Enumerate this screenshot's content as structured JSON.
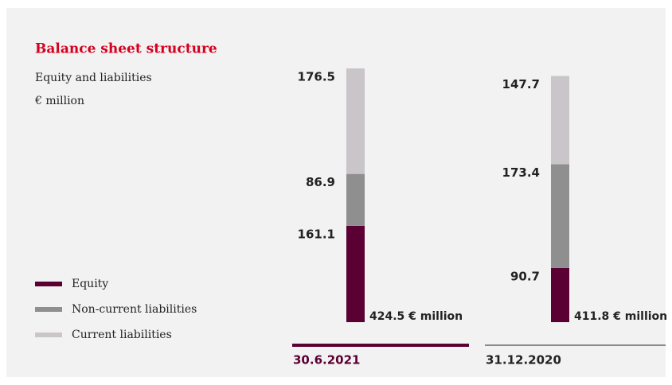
{
  "chart_data": {
    "type": "stacked-bar",
    "title": "Balance sheet structure",
    "subtitle": "Equity and liabilities",
    "unit": "€ million",
    "categories": [
      "30.6.2021",
      "31.12.2020"
    ],
    "series": [
      {
        "name": "Equity",
        "color": "#5a0032",
        "values": [
          161.1,
          90.7
        ]
      },
      {
        "name": "Non-current liabilities",
        "color": "#8f8f8f",
        "values": [
          86.9,
          173.4
        ]
      },
      {
        "name": "Current liabilities",
        "color": "#c9c5c9",
        "values": [
          176.5,
          147.7
        ]
      }
    ],
    "totals": {
      "values": [
        424.5,
        411.8
      ],
      "value_labels": [
        "424.5 € million",
        "411.8 € million"
      ]
    }
  }
}
